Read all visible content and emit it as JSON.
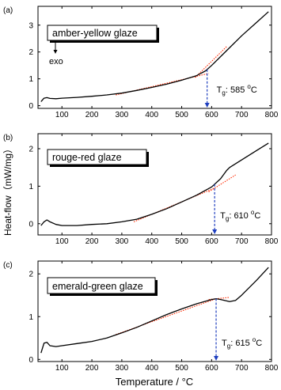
{
  "chart_data": {
    "type": "line",
    "shared_xlabel_text": "Temperature / ",
    "shared_xlabel_unit": "°C",
    "shared_ylabel": "Heat-flow（mW/mg）",
    "xlim": [
      20,
      800
    ],
    "x_ticks": [
      100,
      200,
      300,
      400,
      500,
      600,
      700,
      800
    ],
    "panels": [
      {
        "letter": "(a)",
        "legend": "amber-yellow glaze",
        "exo_label": "exo",
        "tg_symbol": "T",
        "tg_sub": "g",
        "tg_value_text": ": 585 ",
        "tg_unit_sup": "o",
        "tg_unit": "C",
        "tg": 585,
        "ylim": [
          -0.1,
          3.7
        ],
        "y_ticks": [
          0,
          1,
          2,
          3
        ],
        "x": [
          30,
          40,
          50,
          60,
          80,
          100,
          150,
          200,
          250,
          300,
          350,
          400,
          450,
          500,
          550,
          580,
          600,
          650,
          700,
          750,
          790
        ],
        "y": [
          0.15,
          0.28,
          0.3,
          0.27,
          0.26,
          0.28,
          0.31,
          0.35,
          0.4,
          0.47,
          0.57,
          0.68,
          0.8,
          0.95,
          1.12,
          1.3,
          1.5,
          2.05,
          2.6,
          3.1,
          3.5
        ],
        "tangent_low": [
          [
            280,
            0.4
          ],
          [
            590,
            1.2
          ]
        ],
        "tangent_high": [
          [
            545,
            1.05
          ],
          [
            650,
            2.2
          ]
        ]
      },
      {
        "letter": "(b)",
        "legend": "rouge-red glaze",
        "tg_symbol": "T",
        "tg_sub": "g",
        "tg_value_text": ": 610 ",
        "tg_unit_sup": "o",
        "tg_unit": "C",
        "tg": 610,
        "ylim": [
          -0.3,
          2.4
        ],
        "y_ticks": [
          0,
          1,
          2
        ],
        "x": [
          30,
          40,
          50,
          60,
          80,
          100,
          150,
          200,
          250,
          300,
          350,
          400,
          450,
          500,
          550,
          600,
          630,
          650,
          660,
          700,
          750,
          790
        ],
        "y": [
          -0.05,
          0.05,
          0.1,
          0.05,
          -0.02,
          -0.05,
          -0.05,
          -0.02,
          0.0,
          0.05,
          0.12,
          0.25,
          0.4,
          0.58,
          0.76,
          0.98,
          1.2,
          1.42,
          1.5,
          1.7,
          1.95,
          2.15
        ],
        "tangent_low": [
          [
            340,
            0.05
          ],
          [
            610,
            0.95
          ]
        ],
        "tangent_high": [
          [
            590,
            0.85
          ],
          [
            680,
            1.3
          ]
        ]
      },
      {
        "letter": "(c)",
        "legend": "emerald-green glaze",
        "tg_symbol": "T",
        "tg_sub": "g",
        "tg_value_text": ": 615 ",
        "tg_unit_sup": "o",
        "tg_unit": "C",
        "tg": 615,
        "ylim": [
          -0.05,
          2.3
        ],
        "y_ticks": [
          0,
          1,
          2
        ],
        "x": [
          30,
          40,
          50,
          60,
          80,
          100,
          150,
          200,
          250,
          300,
          350,
          400,
          450,
          500,
          550,
          600,
          615,
          630,
          660,
          680,
          700,
          750,
          790
        ],
        "y": [
          0.15,
          0.38,
          0.4,
          0.32,
          0.3,
          0.32,
          0.37,
          0.42,
          0.5,
          0.62,
          0.75,
          0.9,
          1.05,
          1.18,
          1.3,
          1.4,
          1.42,
          1.4,
          1.35,
          1.38,
          1.5,
          1.85,
          2.15
        ],
        "tangent_low": [
          [
            280,
            0.58
          ],
          [
            615,
            1.42
          ]
        ],
        "tangent_high": [
          [
            590,
            1.4
          ],
          [
            660,
            1.45
          ]
        ]
      }
    ],
    "colors": {
      "curve": "#000000",
      "tangent": "#ff2a00",
      "tg_marker": "#1f3fbf",
      "axis": "#000000"
    }
  }
}
